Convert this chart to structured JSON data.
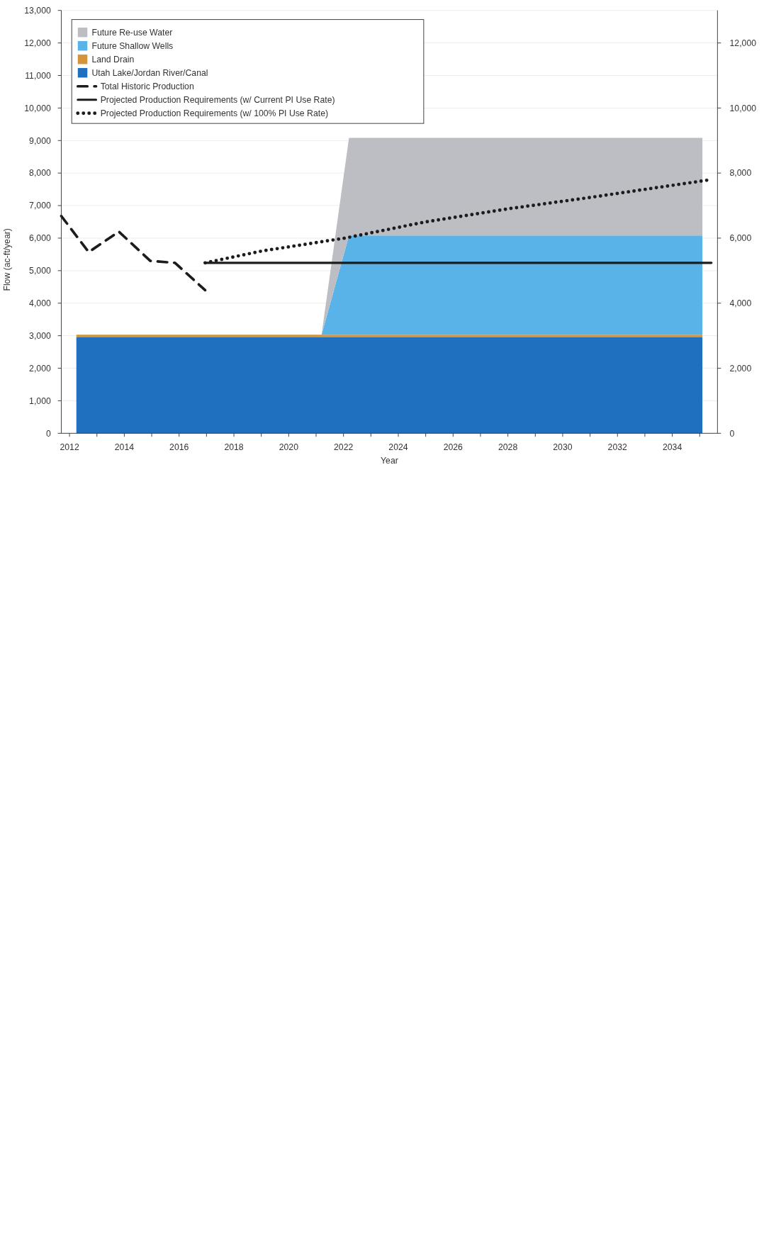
{
  "chart_data": {
    "type": "area",
    "stacked": true,
    "xlabel": "Year",
    "ylabel": "Flow (ac-ft/year)",
    "x": [
      2012.25,
      2021.2,
      2022.2,
      2035.1
    ],
    "xlim": [
      2011.7,
      2035.65
    ],
    "xticks": [
      2012,
      {
        "value": 2013,
        "label": null
      },
      2014,
      {
        "value": 2015,
        "label": null
      },
      2016,
      {
        "value": 2017,
        "label": null
      },
      2018,
      {
        "value": 2019,
        "label": null
      },
      2020,
      {
        "value": 2021,
        "label": null
      },
      2022,
      {
        "value": 2023,
        "label": null
      },
      2024,
      {
        "value": 2025,
        "label": null
      },
      2026,
      {
        "value": 2027,
        "label": null
      },
      2028,
      {
        "value": 2029,
        "label": null
      },
      2030,
      {
        "value": 2031,
        "label": null
      },
      2032,
      {
        "value": 2033,
        "label": null
      },
      2034,
      {
        "value": 2035,
        "label": null
      }
    ],
    "ylim": [
      0,
      13000
    ],
    "yticks": [
      0,
      {
        "value": 1000,
        "label": "1,000"
      },
      {
        "value": 2000,
        "label": "2,000"
      },
      {
        "value": 3000,
        "label": "3,000"
      },
      {
        "value": 4000,
        "label": "4,000"
      },
      {
        "value": 5000,
        "label": "5,000"
      },
      {
        "value": 6000,
        "label": "6,000"
      },
      {
        "value": 7000,
        "label": "7,000"
      },
      {
        "value": 8000,
        "label": "8,000"
      },
      {
        "value": 9000,
        "label": "9,000"
      },
      {
        "value": 10000,
        "label": "10,000"
      },
      {
        "value": 11000,
        "label": "11,000"
      },
      {
        "value": 12000,
        "label": "12,000"
      },
      {
        "value": 13000,
        "label": "13,000"
      }
    ],
    "y2lim": [
      0,
      13000
    ],
    "y2ticks": [
      0,
      {
        "value": 2000,
        "label": "2,000"
      },
      {
        "value": 4000,
        "label": "4,000"
      },
      {
        "value": 6000,
        "label": "6,000"
      },
      {
        "value": 8000,
        "label": "8,000"
      },
      {
        "value": 10000,
        "label": "10,000"
      },
      {
        "value": 12000,
        "label": "12,000"
      }
    ],
    "grid": "y",
    "legend": "top left",
    "series": [
      {
        "name": "Utah Lake/Jordan River/Canal",
        "color": "#1f70bf",
        "values": [
          2950,
          2950,
          2950,
          2950
        ]
      },
      {
        "name": "Land Drain",
        "color": "#d4953a",
        "values": [
          80,
          80,
          80,
          80
        ]
      },
      {
        "name": "Future Shallow Wells",
        "color": "#5ab3e8",
        "values": [
          0,
          0,
          3050,
          3050
        ]
      },
      {
        "name": "Future Re-use Water",
        "color": "#bdbec3",
        "values": [
          0,
          0,
          3000,
          3000
        ]
      },
      {
        "name": "Total Historic Production",
        "type": "line",
        "color": "#1c1c1c",
        "line_style": "dashed",
        "x": [
          2011.7,
          2012.7,
          2013.8,
          2014.95,
          2015.85,
          2016.95
        ],
        "values": [
          6680,
          5570,
          6200,
          5300,
          5240,
          4400
        ]
      },
      {
        "name": "Projected Production Requirements (w/ Current PI Use Rate)",
        "type": "line",
        "color": "#1c1c1c",
        "line_style": "solid",
        "x": [
          2016.95,
          2035.43
        ],
        "values": [
          5240,
          5240
        ]
      },
      {
        "name": "Projected Production Requirements (w/ 100% PI Use Rate)",
        "type": "line",
        "color": "#1c1c1c",
        "line_style": "dotted",
        "x": [
          2016.95,
          2019,
          2022.05,
          2025,
          2028,
          2031,
          2035.43
        ],
        "values": [
          5240,
          5600,
          6000,
          6500,
          6900,
          7250,
          7800
        ]
      }
    ]
  }
}
